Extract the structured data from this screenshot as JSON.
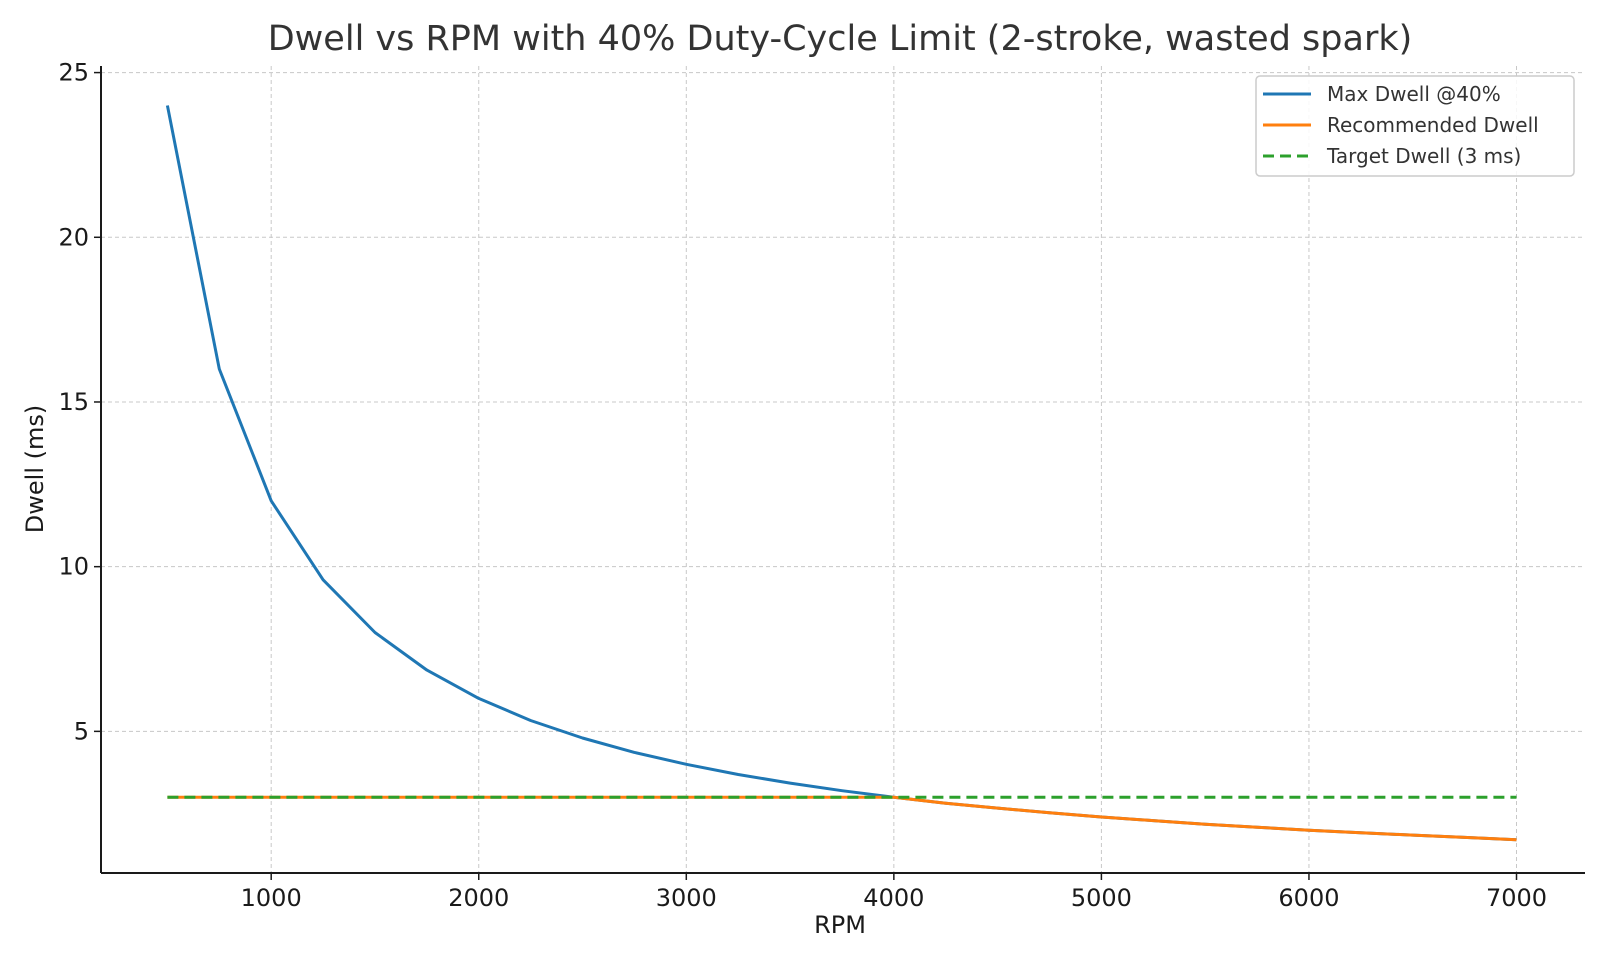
{
  "chart_data": {
    "type": "line",
    "title": "Dwell vs RPM with 40% Duty-Cycle Limit (2-stroke, wasted spark)",
    "xlabel": "RPM",
    "ylabel": "Dwell (ms)",
    "xlim": [
      180,
      7330
    ],
    "ylim": [
      0.7,
      25.2
    ],
    "xticks": [
      1000,
      2000,
      3000,
      4000,
      5000,
      6000,
      7000
    ],
    "yticks": [
      5,
      10,
      15,
      20,
      25
    ],
    "grid": true,
    "legend_position": "top-right",
    "x": [
      500,
      750,
      1000,
      1250,
      1500,
      1750,
      2000,
      2250,
      2500,
      2750,
      3000,
      3250,
      3500,
      3750,
      4000,
      4250,
      4500,
      4750,
      5000,
      5250,
      5500,
      5750,
      6000,
      6250,
      6500,
      6750,
      7000
    ],
    "series": [
      {
        "name": "Max Dwell @40%",
        "color": "#1f77b4",
        "style": "solid",
        "values": [
          24.0,
          16.0,
          12.0,
          9.6,
          8.0,
          6.86,
          6.0,
          5.33,
          4.8,
          4.36,
          4.0,
          3.69,
          3.43,
          3.2,
          3.0,
          2.82,
          2.67,
          2.53,
          2.4,
          2.29,
          2.18,
          2.09,
          2.0,
          1.92,
          1.85,
          1.78,
          1.71
        ]
      },
      {
        "name": "Recommended Dwell",
        "color": "#ff7f0e",
        "style": "solid",
        "values": [
          3.0,
          3.0,
          3.0,
          3.0,
          3.0,
          3.0,
          3.0,
          3.0,
          3.0,
          3.0,
          3.0,
          3.0,
          3.0,
          3.0,
          3.0,
          2.82,
          2.67,
          2.53,
          2.4,
          2.29,
          2.18,
          2.09,
          2.0,
          1.92,
          1.85,
          1.78,
          1.71
        ]
      },
      {
        "name": "Target Dwell (3 ms)",
        "color": "#2ca02c",
        "style": "dashed",
        "values": [
          3.0,
          3.0,
          3.0,
          3.0,
          3.0,
          3.0,
          3.0,
          3.0,
          3.0,
          3.0,
          3.0,
          3.0,
          3.0,
          3.0,
          3.0,
          3.0,
          3.0,
          3.0,
          3.0,
          3.0,
          3.0,
          3.0,
          3.0,
          3.0,
          3.0,
          3.0,
          3.0
        ]
      }
    ]
  }
}
